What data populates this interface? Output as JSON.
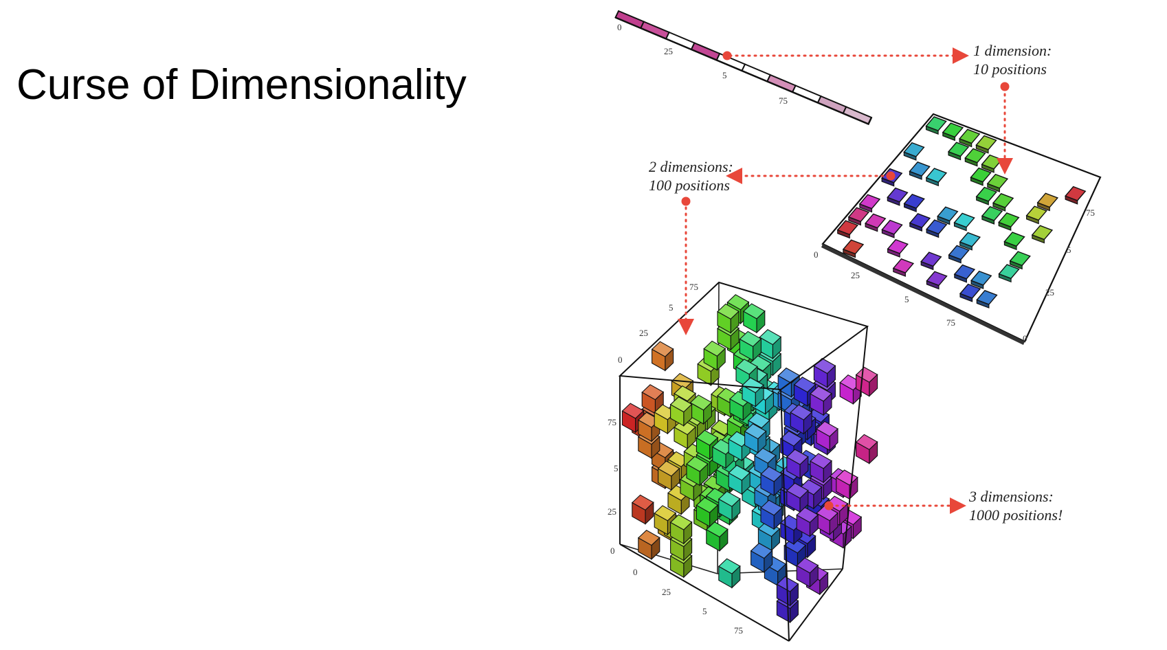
{
  "slide": {
    "title": "Curse of Dimensionality"
  },
  "diagram": {
    "accent": "#e8473a",
    "captions": [
      {
        "key": "d1",
        "line1": "1 dimension:",
        "line2": "10 positions"
      },
      {
        "key": "d2",
        "line1": "2 dimensions:",
        "line2": "100 positions"
      },
      {
        "key": "d3",
        "line1": "3 dimensions:",
        "line2": "1000 positions!"
      }
    ],
    "strip": {
      "dims": 1,
      "ticks": [
        "0",
        "25",
        "5",
        "75"
      ]
    },
    "grid": {
      "dims": 2,
      "ticks_a": [
        "0",
        "25",
        "5",
        "75"
      ],
      "ticks_b": [
        "0",
        "25",
        "5",
        "75"
      ]
    },
    "cube": {
      "dims": 3,
      "ticks_depth": [
        "0",
        "25",
        "5",
        "75"
      ],
      "ticks_height": [
        "0",
        "25",
        "5",
        "75"
      ],
      "ticks_front": [
        "0",
        "25",
        "5",
        "75"
      ]
    }
  }
}
